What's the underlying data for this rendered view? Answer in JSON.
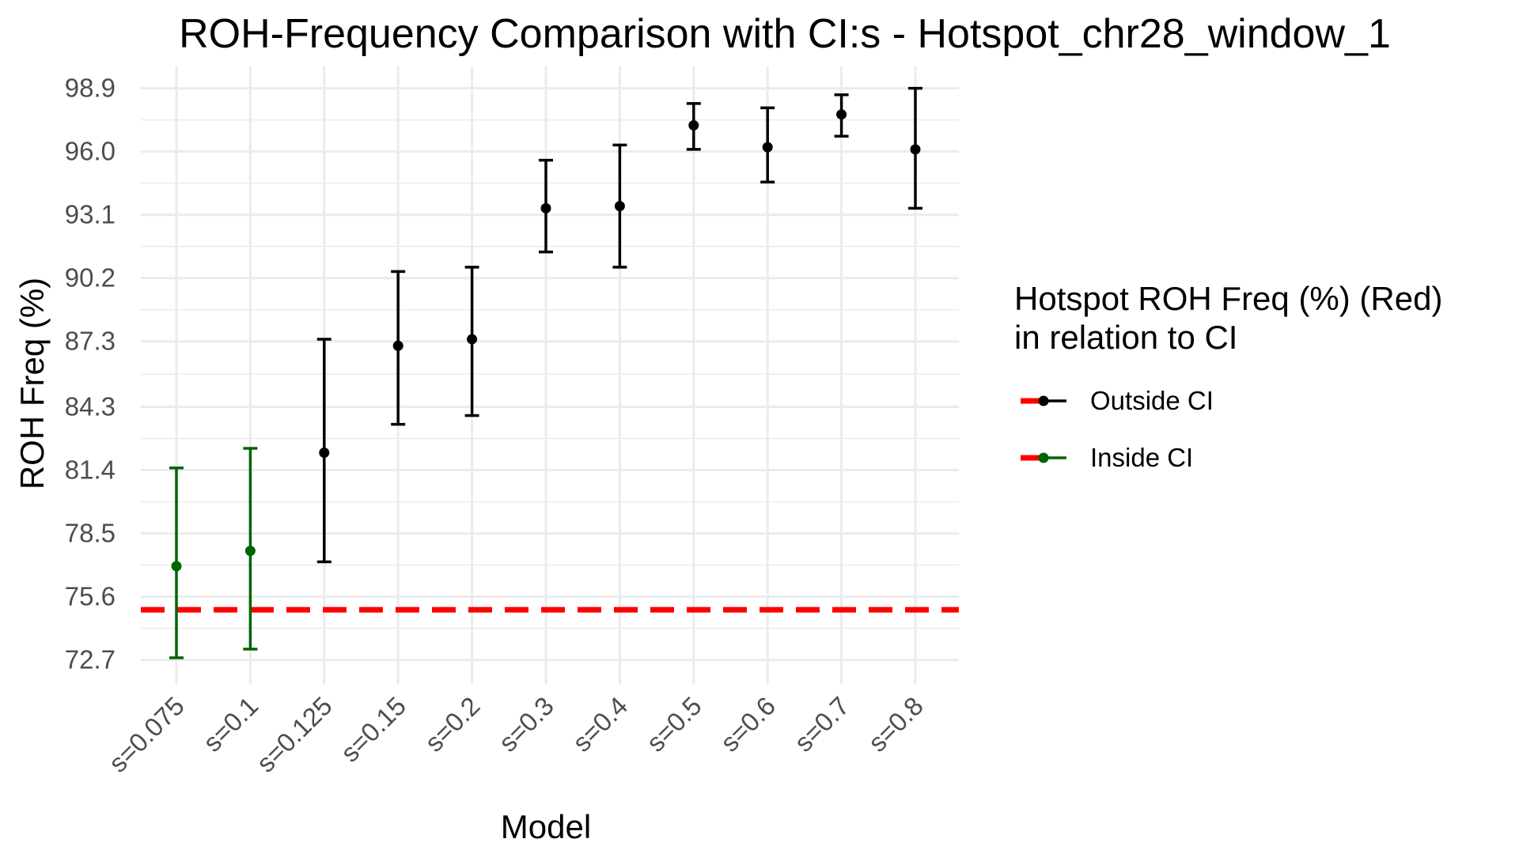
{
  "chart_data": {
    "type": "scatter",
    "title": "ROH-Frequency Comparison with CI:s -  Hotspot_chr28_window_1",
    "xlabel": "Model",
    "ylabel": "ROH Freq (%)",
    "categories": [
      "s=0.075",
      "s=0.1",
      "s=0.125",
      "s=0.15",
      "s=0.2",
      "s=0.3",
      "s=0.4",
      "s=0.5",
      "s=0.6",
      "s=0.7",
      "s=0.8"
    ],
    "y_ticks": [
      "72.7",
      "75.6",
      "78.5",
      "81.4",
      "84.3",
      "87.3",
      "90.2",
      "93.1",
      "96.0",
      "98.9"
    ],
    "ylim": [
      71.6,
      99.9
    ],
    "grid": true,
    "legend_placement": "right",
    "points": [
      {
        "model": "s=0.075",
        "value": 77.0,
        "ci_low": 72.8,
        "ci_high": 81.5,
        "status": "Inside CI"
      },
      {
        "model": "s=0.1",
        "value": 77.7,
        "ci_low": 73.2,
        "ci_high": 82.4,
        "status": "Inside CI"
      },
      {
        "model": "s=0.125",
        "value": 82.2,
        "ci_low": 77.2,
        "ci_high": 87.4,
        "status": "Outside CI"
      },
      {
        "model": "s=0.15",
        "value": 87.1,
        "ci_low": 83.5,
        "ci_high": 90.5,
        "status": "Outside CI"
      },
      {
        "model": "s=0.2",
        "value": 87.4,
        "ci_low": 83.9,
        "ci_high": 90.7,
        "status": "Outside CI"
      },
      {
        "model": "s=0.3",
        "value": 93.4,
        "ci_low": 91.4,
        "ci_high": 95.6,
        "status": "Outside CI"
      },
      {
        "model": "s=0.4",
        "value": 93.5,
        "ci_low": 90.7,
        "ci_high": 96.3,
        "status": "Outside CI"
      },
      {
        "model": "s=0.5",
        "value": 97.2,
        "ci_low": 96.1,
        "ci_high": 98.2,
        "status": "Outside CI"
      },
      {
        "model": "s=0.6",
        "value": 96.2,
        "ci_low": 94.6,
        "ci_high": 98.0,
        "status": "Outside CI"
      },
      {
        "model": "s=0.7",
        "value": 97.7,
        "ci_low": 96.7,
        "ci_high": 98.6,
        "status": "Outside CI"
      },
      {
        "model": "s=0.8",
        "value": 96.1,
        "ci_low": 93.4,
        "ci_high": 98.9,
        "status": "Outside CI"
      }
    ],
    "hotspot_value": 75.0,
    "legend": {
      "title_line1": "Hotspot ROH Freq (%) (Red)",
      "title_line2": "in relation to CI",
      "entries": [
        {
          "label": "Outside CI",
          "color": "#000000"
        },
        {
          "label": "Inside CI",
          "color": "#006400"
        }
      ]
    },
    "colors": {
      "outside": "#000000",
      "inside": "#006400",
      "hotspot_line": "#ff0000",
      "grid": "#ebebeb"
    }
  }
}
